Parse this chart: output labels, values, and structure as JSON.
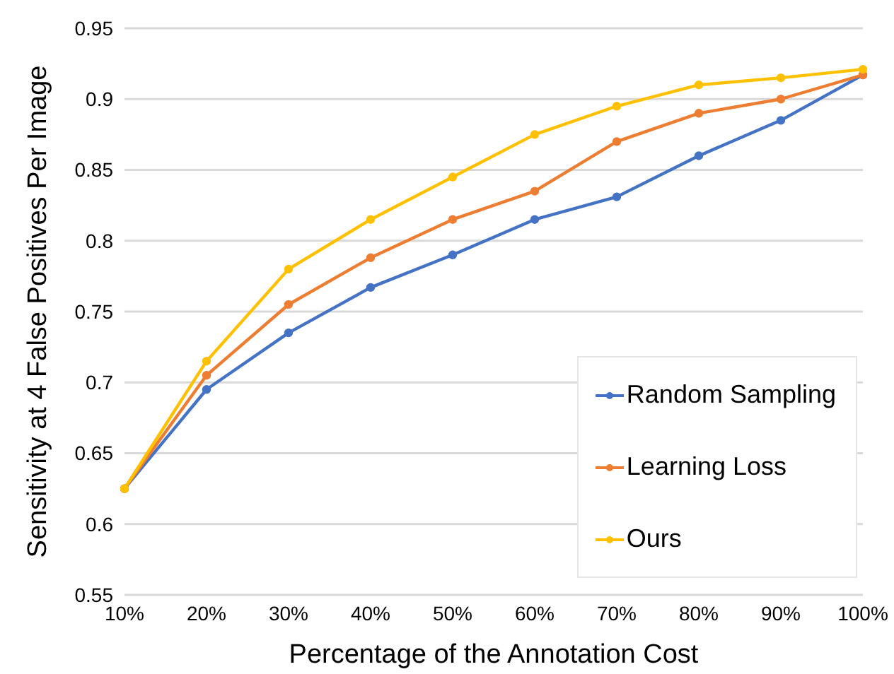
{
  "chart_data": {
    "type": "line",
    "xlabel": "Percentage of the Annotation Cost",
    "ylabel": "Sensitivity at 4 False Positives Per Image",
    "categories": [
      "10%",
      "20%",
      "30%",
      "40%",
      "50%",
      "60%",
      "70%",
      "80%",
      "90%",
      "100%"
    ],
    "series": [
      {
        "name": "Random Sampling",
        "color": "#4472c4",
        "values": [
          0.625,
          0.695,
          0.735,
          0.767,
          0.79,
          0.815,
          0.831,
          0.86,
          0.885,
          0.917
        ]
      },
      {
        "name": "Learning Loss",
        "color": "#ed7d31",
        "values": [
          0.625,
          0.705,
          0.755,
          0.788,
          0.815,
          0.835,
          0.87,
          0.89,
          0.9,
          0.917
        ]
      },
      {
        "name": "Ours",
        "color": "#ffc000",
        "values": [
          0.625,
          0.715,
          0.78,
          0.815,
          0.845,
          0.875,
          0.895,
          0.91,
          0.915,
          0.921
        ]
      }
    ],
    "ylim": [
      0.55,
      0.95
    ],
    "yticks": [
      0.55,
      0.6,
      0.65,
      0.7,
      0.75,
      0.8,
      0.85,
      0.9,
      0.95
    ],
    "grid": "y",
    "legend": "bottom right",
    "marker": "circle",
    "line_style": "solid"
  }
}
